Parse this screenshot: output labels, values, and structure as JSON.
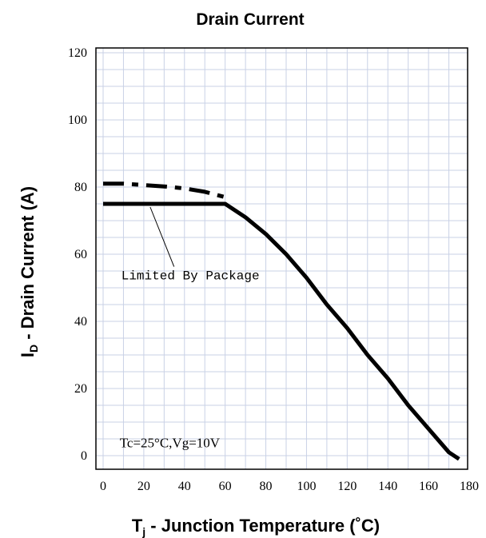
{
  "chart_data": {
    "type": "line",
    "title": "Drain Current",
    "xlabel": {
      "main": "T",
      "sub": "j",
      "rest": " - Junction Temperature (˚C)"
    },
    "ylabel": {
      "main": "I",
      "sub": "D",
      "rest": " - Drain Current (A)"
    },
    "xlim": [
      0,
      180
    ],
    "ylim": [
      0,
      120
    ],
    "x_ticks": [
      0,
      20,
      40,
      60,
      80,
      100,
      120,
      140,
      160,
      180
    ],
    "y_ticks": [
      0,
      20,
      40,
      60,
      80,
      100,
      120
    ],
    "grid": true,
    "series": [
      {
        "style": "solid",
        "x": [
          0,
          60,
          70,
          80,
          90,
          100,
          110,
          120,
          130,
          140,
          150,
          160,
          170,
          175
        ],
        "y": [
          75,
          75,
          71,
          66,
          60,
          53,
          45,
          38,
          30,
          23,
          15,
          8,
          1,
          -1
        ]
      },
      {
        "style": "dashed",
        "x": [
          0,
          10,
          20,
          30,
          40,
          50,
          60
        ],
        "y": [
          81,
          81,
          80.6,
          80.2,
          79.6,
          78.6,
          77
        ]
      }
    ],
    "annotations": [
      {
        "text": "Limited By Package",
        "x": 5,
        "y": 52,
        "arrow_to": [
          20,
          75
        ]
      },
      {
        "text": "Tc=25°C,Vg=10V",
        "x": 5,
        "y": 2
      }
    ]
  }
}
